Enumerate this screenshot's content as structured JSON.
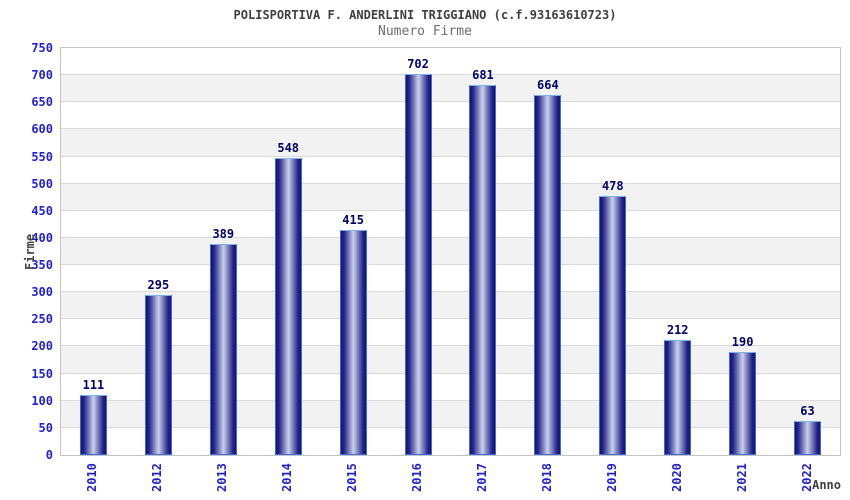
{
  "header": {
    "title": "POLISPORTIVA F. ANDERLINI TRIGGIANO (c.f.93163610723)",
    "subtitle": "Numero Firme"
  },
  "chart_data": {
    "type": "bar",
    "title": "POLISPORTIVA F. ANDERLINI TRIGGIANO (c.f.93163610723)",
    "subtitle": "Numero Firme",
    "categories": [
      "2010",
      "2012",
      "2013",
      "2014",
      "2015",
      "2016",
      "2017",
      "2018",
      "2019",
      "2020",
      "2021",
      "2022"
    ],
    "values": [
      111,
      295,
      389,
      548,
      415,
      702,
      681,
      664,
      478,
      212,
      190,
      63
    ],
    "xlabel": "Anno",
    "ylabel": "Firme",
    "ylim": [
      0,
      750
    ],
    "ytick_step": 50,
    "grid": true,
    "legend_position": "none",
    "value_labels_shown": true,
    "colors": {
      "bar_dark": "#15156e",
      "bar_edge": "#23238b",
      "bar_mid": "#8189c0",
      "bar_light": "#cdd1ec",
      "bar_border": "#3f68d9",
      "bar_border_top": "#7cb2e8",
      "tick_label": "#2222cc",
      "value_label": "#000066",
      "title": "#404040",
      "subtitle": "#6e6e6e",
      "axis_title": "#404040",
      "band_gray": "#f2f2f2",
      "band_white": "#ffffff",
      "grid_line": "#dadada",
      "plot_border": "#c4c4c4",
      "background": "#ffffff"
    }
  }
}
